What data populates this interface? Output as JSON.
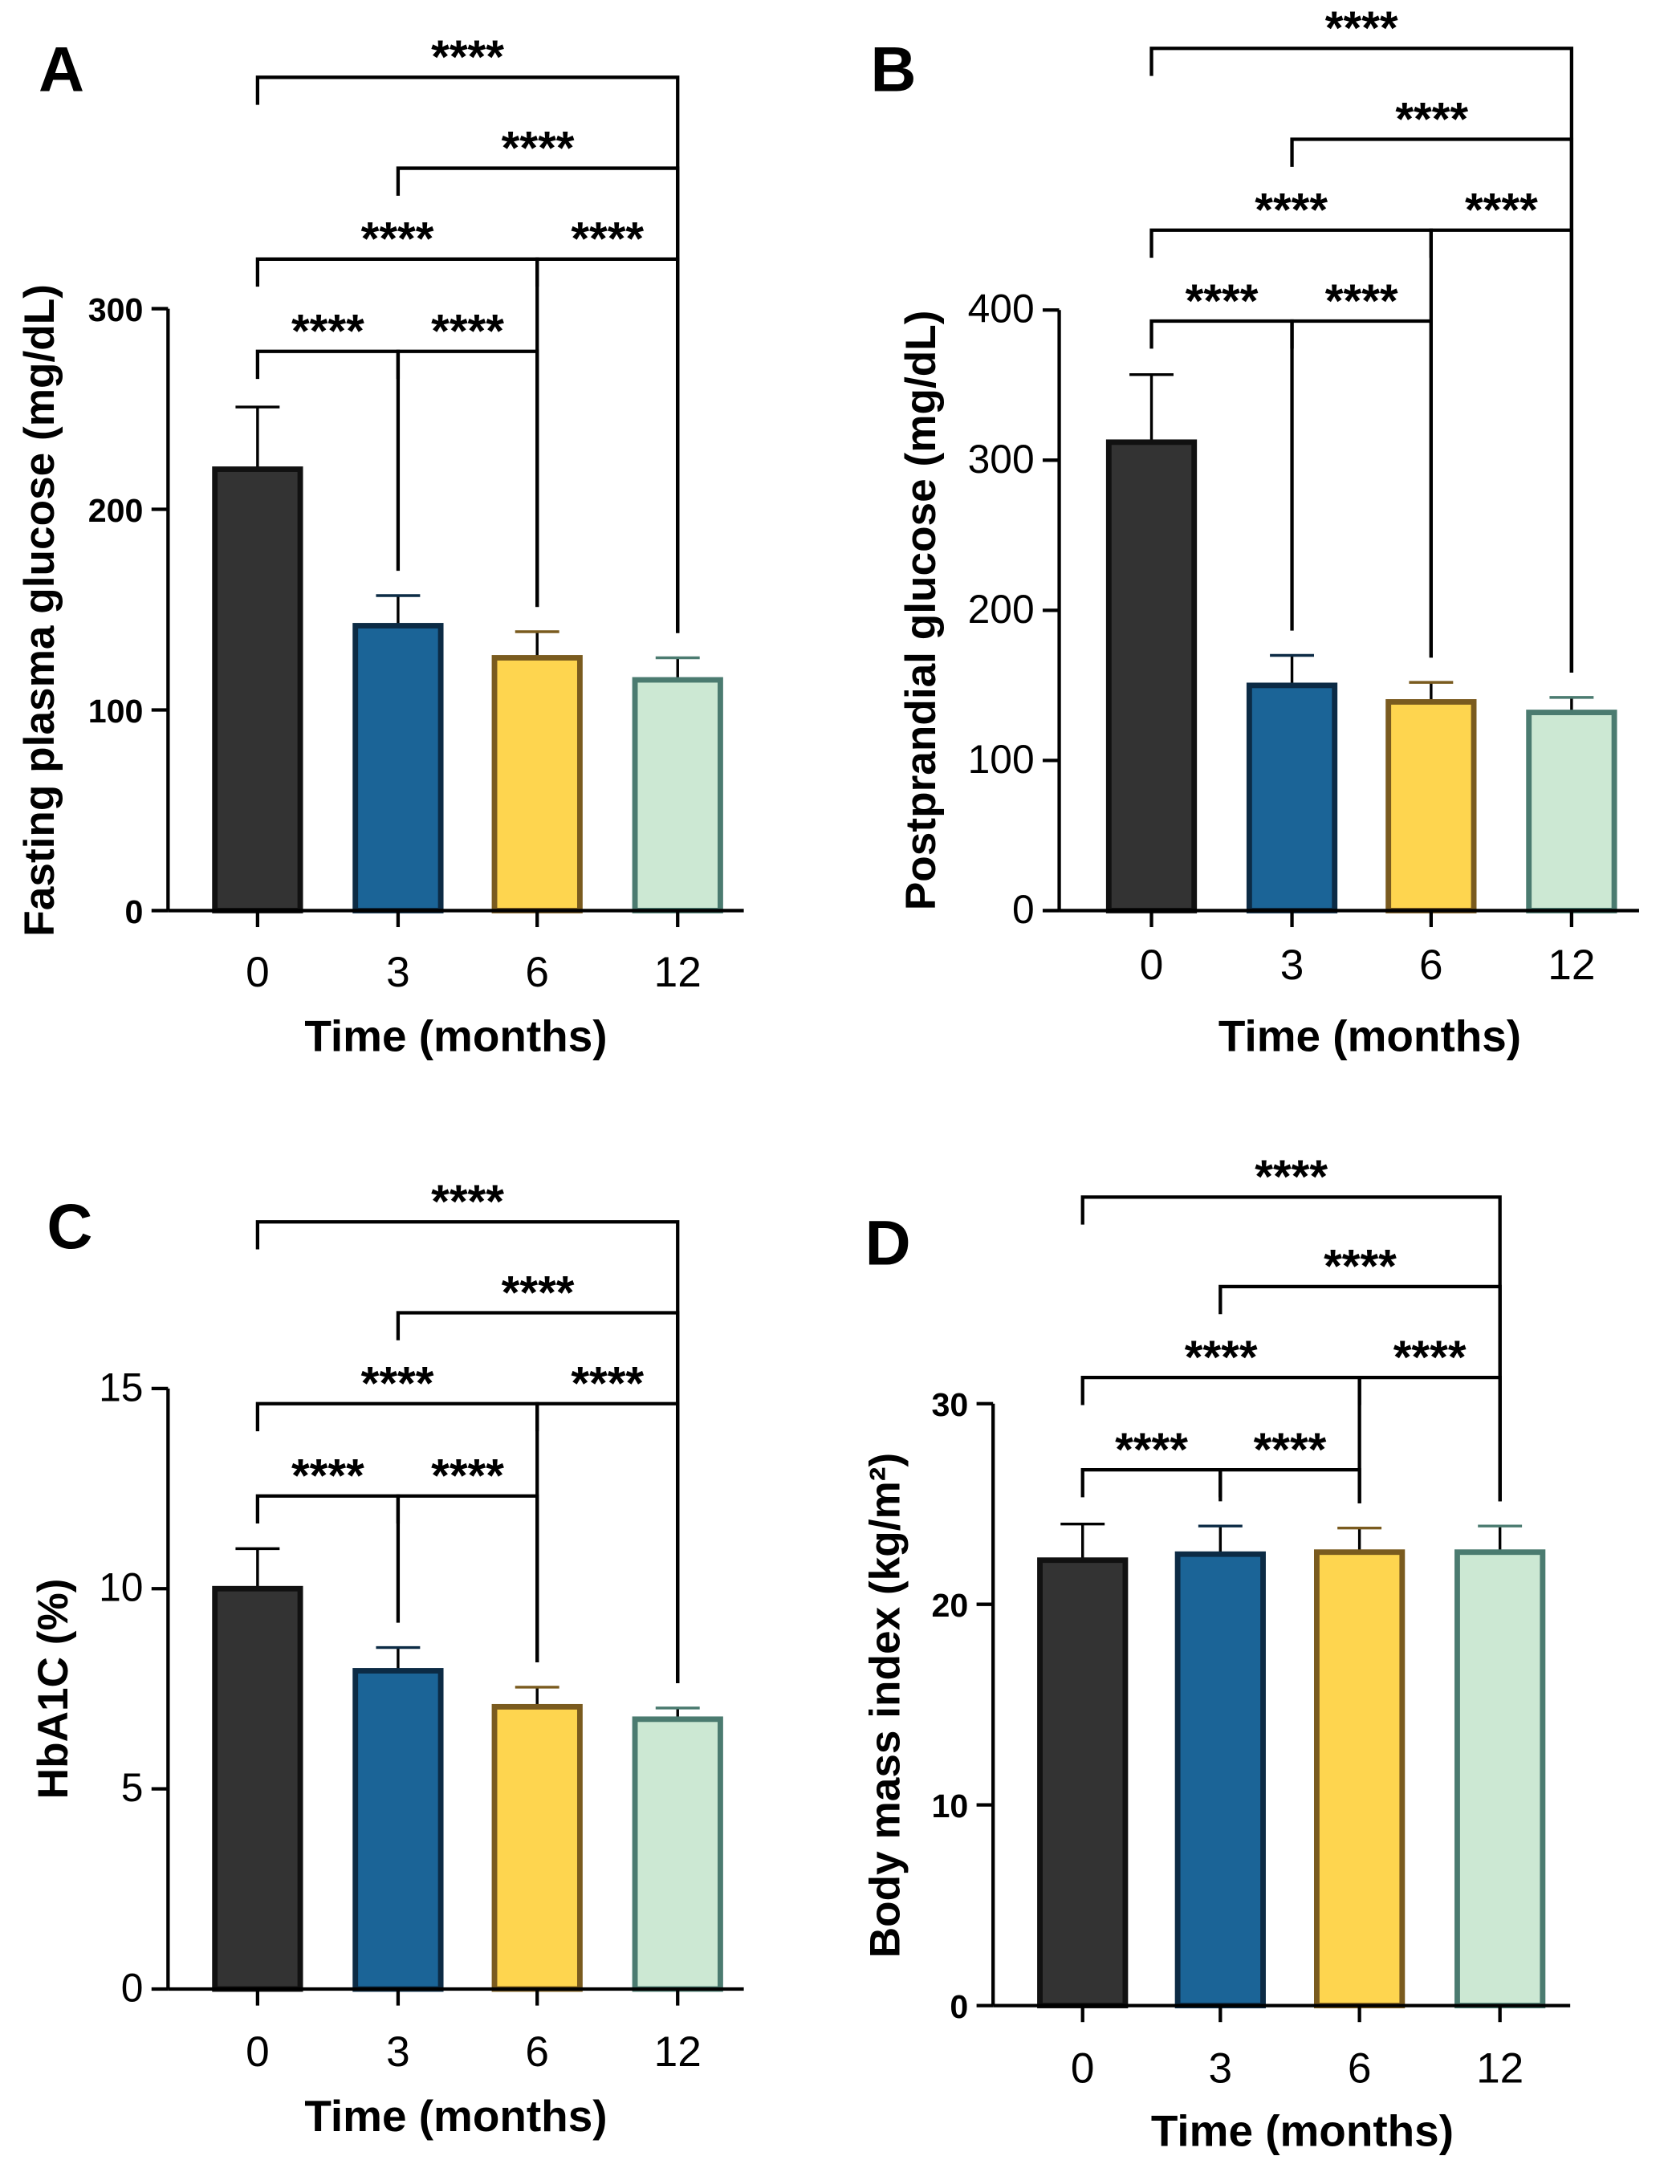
{
  "chart_data": [
    {
      "type": "bar",
      "panel_label": "A",
      "categories": [
        "0",
        "3",
        "6",
        "12"
      ],
      "values": [
        220,
        142,
        126,
        115
      ],
      "error_upper": [
        251,
        157,
        139,
        126
      ],
      "ylabel": "Fasting plasma glucose (mg/dL)",
      "xlabel": "Time (months)",
      "ylim": [
        0,
        300
      ],
      "yticks": [
        "0",
        "100",
        "200",
        "300"
      ],
      "comparisons": [
        {
          "pair": [
            0,
            1
          ],
          "label": "****"
        },
        {
          "pair": [
            1,
            2
          ],
          "label": "****"
        },
        {
          "pair": [
            0,
            2
          ],
          "label": "****"
        },
        {
          "pair": [
            2,
            3
          ],
          "label": "****"
        },
        {
          "pair": [
            1,
            3
          ],
          "label": "****"
        },
        {
          "pair": [
            0,
            3
          ],
          "label": "****"
        }
      ]
    },
    {
      "type": "bar",
      "panel_label": "B",
      "categories": [
        "0",
        "3",
        "6",
        "12"
      ],
      "values": [
        312,
        150,
        139,
        132
      ],
      "error_upper": [
        357,
        170,
        152,
        142
      ],
      "ylabel": "Postprandial glucose (mg/dL)",
      "xlabel": "Time (months)",
      "ylim": [
        0,
        400
      ],
      "yticks": [
        "0",
        "100",
        "200",
        "300",
        "400"
      ],
      "comparisons": [
        {
          "pair": [
            0,
            1
          ],
          "label": "****"
        },
        {
          "pair": [
            1,
            2
          ],
          "label": "****"
        },
        {
          "pair": [
            0,
            2
          ],
          "label": "****"
        },
        {
          "pair": [
            2,
            3
          ],
          "label": "****"
        },
        {
          "pair": [
            1,
            3
          ],
          "label": "****"
        },
        {
          "pair": [
            0,
            3
          ],
          "label": "****"
        }
      ]
    },
    {
      "type": "bar",
      "panel_label": "C",
      "categories": [
        "0",
        "3",
        "6",
        "12"
      ],
      "values": [
        10.0,
        7.95,
        7.05,
        6.74
      ],
      "error_upper": [
        11.0,
        8.53,
        7.54,
        7.02
      ],
      "ylabel": "HbA1C (%)",
      "xlabel": "Time (months)",
      "ylim": [
        0,
        15
      ],
      "yticks": [
        "0",
        "5",
        "10",
        "15"
      ],
      "comparisons": [
        {
          "pair": [
            0,
            1
          ],
          "label": "****"
        },
        {
          "pair": [
            1,
            2
          ],
          "label": "****"
        },
        {
          "pair": [
            0,
            2
          ],
          "label": "****"
        },
        {
          "pair": [
            2,
            3
          ],
          "label": "****"
        },
        {
          "pair": [
            1,
            3
          ],
          "label": "****"
        },
        {
          "pair": [
            0,
            3
          ],
          "label": "****"
        }
      ]
    },
    {
      "type": "bar",
      "panel_label": "D",
      "categories": [
        "0",
        "3",
        "6",
        "12"
      ],
      "values": [
        22.2,
        22.5,
        22.6,
        22.6
      ],
      "error_upper": [
        24.0,
        23.9,
        23.8,
        23.9
      ],
      "ylabel": "Body mass index (kg/m²)",
      "xlabel": "Time (months)",
      "ylim": [
        0,
        30
      ],
      "yticks": [
        "0",
        "10",
        "20",
        "30"
      ],
      "comparisons": [
        {
          "pair": [
            0,
            1
          ],
          "label": "****"
        },
        {
          "pair": [
            1,
            2
          ],
          "label": "****"
        },
        {
          "pair": [
            0,
            2
          ],
          "label": "****"
        },
        {
          "pair": [
            2,
            3
          ],
          "label": "****"
        },
        {
          "pair": [
            1,
            3
          ],
          "label": "****"
        },
        {
          "pair": [
            0,
            3
          ],
          "label": "****"
        }
      ]
    }
  ],
  "colors": {
    "fills": [
      "#333333",
      "#1b6497",
      "#fed54f",
      "#cce8d3"
    ],
    "strokes": [
      "#111111",
      "#0c2b45",
      "#7a5b1f",
      "#4b7b70"
    ]
  }
}
